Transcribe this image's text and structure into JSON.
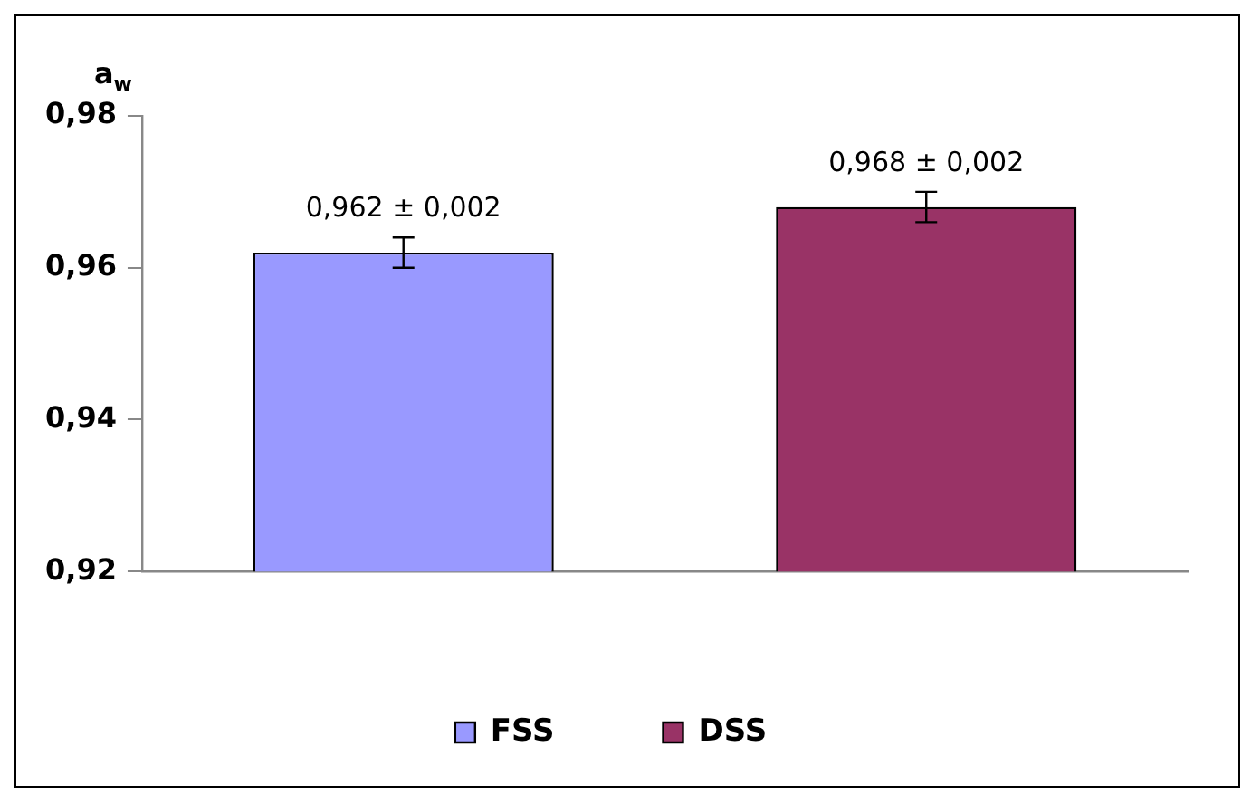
{
  "chart_data": {
    "type": "bar",
    "ylabel": "a$_{w}$",
    "categories": [
      null
    ],
    "series": [
      {
        "name": "FSS",
        "color": "#9999ff",
        "values": [
          0.962
        ],
        "errors": [
          0.002
        ],
        "value_labels": [
          "0,962 ± 0,002"
        ]
      },
      {
        "name": "DSS",
        "color": "#993366",
        "values": [
          0.968
        ],
        "errors": [
          0.002
        ],
        "value_labels": [
          "0,968 ± 0,002"
        ]
      }
    ],
    "ylim": [
      0.92,
      0.98
    ],
    "yticks": [
      {
        "value": 0.92,
        "label": "0,92"
      },
      {
        "value": 0.94,
        "label": "0,94"
      },
      {
        "value": 0.96,
        "label": "0,96"
      },
      {
        "value": 0.98,
        "label": "0,98"
      }
    ],
    "grid": false,
    "legend": "bottom"
  }
}
